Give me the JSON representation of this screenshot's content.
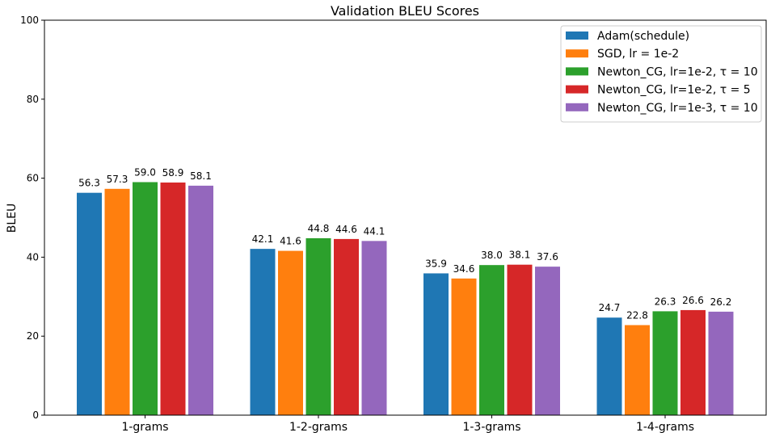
{
  "chart_data": {
    "type": "bar",
    "title": "Validation BLEU Scores",
    "xlabel": "",
    "ylabel": "BLEU",
    "ylim": [
      0,
      100
    ],
    "yticks": [
      0,
      20,
      40,
      60,
      80,
      100
    ],
    "categories": [
      "1-grams",
      "1-2-grams",
      "1-3-grams",
      "1-4-grams"
    ],
    "grid": false,
    "legend_position": "top-right",
    "series": [
      {
        "name": "Adam(schedule)",
        "color": "#1f77b4",
        "values": [
          56.3,
          42.1,
          35.9,
          24.7
        ]
      },
      {
        "name": "SGD, lr = 1e-2",
        "color": "#ff7f0e",
        "values": [
          57.3,
          41.6,
          34.6,
          22.8
        ]
      },
      {
        "name": "Newton_CG, lr=1e-2, τ = 10",
        "color": "#2ca02c",
        "values": [
          59.0,
          44.8,
          38.0,
          26.3
        ]
      },
      {
        "name": "Newton_CG, lr=1e-2, τ = 5",
        "color": "#d62728",
        "values": [
          58.9,
          44.6,
          38.1,
          26.6
        ]
      },
      {
        "name": "Newton_CG, lr=1e-3, τ = 10",
        "color": "#9467bd",
        "values": [
          58.1,
          44.1,
          37.6,
          26.2
        ]
      }
    ]
  }
}
